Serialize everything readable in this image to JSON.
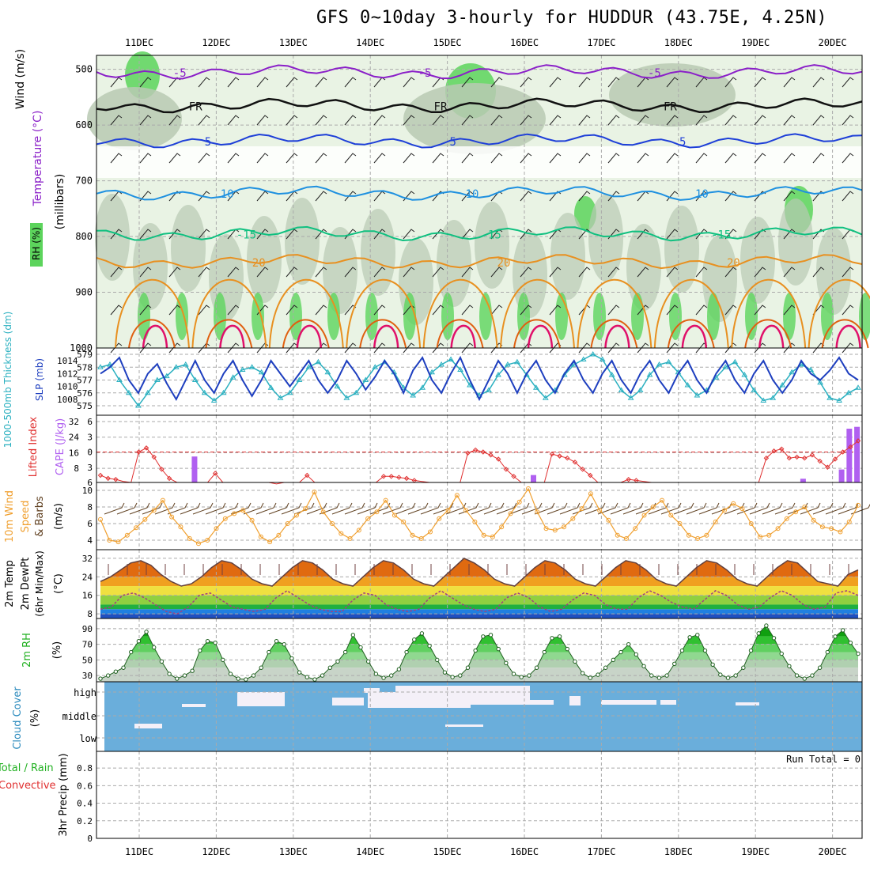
{
  "title": "GFS 0~10day 3-hourly for HUDDUR (43.75E, 4.25N)",
  "dates": [
    "11DEC",
    "12DEC",
    "13DEC",
    "14DEC",
    "15DEC",
    "16DEC",
    "17DEC",
    "18DEC",
    "19DEC",
    "20DEC"
  ],
  "run_total": "Run Total = 0",
  "colors": {
    "grid": "#aaaaaa",
    "slp": "#1e3fbf",
    "thick": "#2ab0c0",
    "li": "#e03030",
    "cape": "#b060f0",
    "wind": "#f0a030",
    "barb": "#604020",
    "rh": "#20b020",
    "cloud": "#6aaedb",
    "precip_green": "#20b020",
    "precip_red": "#e03030"
  },
  "chart_data": [
    {
      "type": "contour",
      "title": "Upper-air cross section",
      "ylabel": "(millibars)",
      "yticks": [
        "500",
        "600",
        "700",
        "800",
        "900",
        "1000"
      ],
      "side_labels": [
        "RH (%)",
        "Temperature (°C)",
        "Wind (m/s)"
      ],
      "isotherms": [
        {
          "label": "-5",
          "color": "#8a1fc8",
          "p": 505
        },
        {
          "label": "FR",
          "color": "#111111",
          "p": 565
        },
        {
          "label": "5",
          "color": "#1e3fd8",
          "p": 628
        },
        {
          "label": "10",
          "color": "#1e90e0",
          "p": 722
        },
        {
          "label": "-15",
          "color": "#10c080",
          "p": 795
        },
        {
          "label": "20",
          "color": "#e89020",
          "p": 845
        }
      ],
      "rh_labels": [
        "30",
        "50",
        "70"
      ]
    },
    {
      "type": "line",
      "title": "Thickness & SLP",
      "left_label": "1000-500mb Thickness (dm)",
      "right_label": "SLP (mb)",
      "left_ticks": [
        "579",
        "578",
        "577",
        "576",
        "575"
      ],
      "right_ticks": [
        "1014",
        "1012",
        "1010",
        "1008"
      ],
      "slp": [
        1012,
        1013,
        1014.5,
        1011,
        1009,
        1012,
        1013.5,
        1010.5,
        1008,
        1011,
        1014,
        1011,
        1009,
        1012,
        1014,
        1011,
        1008.5,
        1011,
        1014,
        1012,
        1010,
        1012,
        1014,
        1011,
        1009,
        1011,
        1014,
        1012,
        1009.5,
        1011.5,
        1014,
        1012,
        1009,
        1012.5,
        1014.5,
        1011,
        1009,
        1012,
        1014.5,
        1011,
        1008,
        1011,
        1014,
        1012,
        1009,
        1012,
        1014,
        1011,
        1009,
        1012,
        1014,
        1011,
        1009,
        1012,
        1014,
        1011,
        1009,
        1012,
        1014,
        1011,
        1009,
        1012,
        1014,
        1011,
        1009,
        1012,
        1014,
        1011,
        1009,
        1012,
        1014,
        1011,
        1009,
        1011,
        1014,
        1012,
        1011,
        1012.5,
        1014.5,
        1012,
        1011
      ],
      "thick": [
        578,
        578.2,
        577,
        576,
        575,
        576,
        577,
        577.3,
        578,
        578.2,
        577,
        576,
        575.4,
        576,
        577.2,
        577.8,
        578,
        577.6,
        576.4,
        575.6,
        576,
        577,
        578,
        578.4,
        577.6,
        576.5,
        575.6,
        576,
        577,
        578,
        578.4,
        577.6,
        576.4,
        575.8,
        576.4,
        577.6,
        578.2,
        578.6,
        577.8,
        576.6,
        575.8,
        576.2,
        577.4,
        578.2,
        578.4,
        577.4,
        576.4,
        575.6,
        576.2,
        577.4,
        578.2,
        578.6,
        579,
        578.6,
        577.4,
        576.2,
        575.6,
        576.2,
        577.4,
        578.2,
        578.4,
        577.6,
        576.6,
        575.8,
        576.2,
        577.2,
        578,
        578.4,
        577.4,
        576.2,
        575.4,
        575.6,
        576.6,
        577.6,
        578.2,
        577.8,
        576.8,
        575.6,
        575.4,
        576,
        576.4
      ]
    },
    {
      "type": "line",
      "title": "CAPE & Lifted Index",
      "left_label": "Lifted Index",
      "right_label": "CAPE (J/kg)",
      "li_ticks": [
        "-6",
        "-3",
        "0",
        "3",
        "6"
      ],
      "cape_ticks": [
        "32",
        "24",
        "16",
        "8"
      ],
      "li": [
        4.6,
        5.2,
        5.4,
        5.8,
        6,
        0,
        -0.8,
        1,
        3.4,
        5.2,
        6,
        6,
        6,
        6,
        6,
        4.2,
        6,
        6,
        6,
        6,
        6,
        6,
        6,
        6.3,
        6,
        6,
        6,
        4.6,
        6,
        6,
        6,
        6,
        6,
        6,
        6,
        6,
        6,
        4.8,
        4.8,
        5,
        5.2,
        5.6,
        5.8,
        6,
        6,
        6,
        6,
        6,
        0.2,
        -0.4,
        0,
        0.6,
        1.4,
        3.4,
        4.8,
        6,
        6,
        6,
        6,
        0.4,
        0.8,
        1.2,
        2,
        3.4,
        4.6,
        6,
        6,
        6,
        6,
        5.4,
        5.6,
        5.8,
        6,
        6,
        6,
        6,
        6,
        6,
        6,
        6,
        6,
        6,
        6,
        6,
        6,
        6,
        6,
        1.2,
        -0.2,
        -0.6,
        1.2,
        1,
        1.2,
        0.6,
        1.8,
        3,
        1.4,
        0,
        -1,
        -2.2
      ],
      "cape_bars": [
        {
          "day": 0.6,
          "v": 14
        },
        {
          "day": 5.0,
          "v": 4
        },
        {
          "day": 8.5,
          "v": 2
        },
        {
          "day": 9.0,
          "v": 7
        },
        {
          "day": 9.1,
          "v": 29
        },
        {
          "day": 9.2,
          "v": 30
        }
      ]
    },
    {
      "type": "line",
      "title": "10m Wind",
      "ylabel": "10m Wind Speed & Barbs (m/s)",
      "yticks": [
        "10",
        "8",
        "6",
        "4"
      ],
      "speed": [
        6.5,
        4,
        3.8,
        4.6,
        5.5,
        6.5,
        7.6,
        8.8,
        6.8,
        5.6,
        4.2,
        3.6,
        4,
        5.4,
        6.6,
        7.2,
        7.6,
        6.4,
        4.4,
        3.8,
        4.6,
        6,
        7,
        7.8,
        9.8,
        7.4,
        6,
        4.8,
        4.2,
        5.2,
        6.6,
        7.4,
        8.8,
        7,
        6.2,
        4.6,
        4.2,
        5,
        6.6,
        7.6,
        9.4,
        7.6,
        6.2,
        4.6,
        4.4,
        5.6,
        7.2,
        8.6,
        10.2,
        7.4,
        5.4,
        5.2,
        5.6,
        6.6,
        7.8,
        9.6,
        7.6,
        6.4,
        4.6,
        4.2,
        5.4,
        7,
        8,
        8.8,
        7,
        6,
        4.6,
        4.2,
        4.6,
        6.2,
        7.6,
        8.4,
        7.8,
        6,
        4.4,
        4.6,
        5.4,
        6.6,
        7.4,
        8,
        6.4,
        5.6,
        5.4,
        5,
        6.2,
        8.2
      ]
    },
    {
      "type": "area",
      "title": "2m Temp & DewPt",
      "ylabel": "2m Temp 2m DewPt (6hr Min/Max) (°C)",
      "yticks": [
        "32",
        "24",
        "16",
        "8"
      ],
      "temp": [
        22,
        24,
        27,
        30,
        31,
        29,
        25,
        22,
        20,
        21,
        24,
        28,
        31,
        30,
        27,
        23,
        21,
        20,
        24,
        28,
        31,
        30,
        27,
        23,
        21,
        20,
        24,
        28,
        31,
        30,
        27,
        23,
        21,
        20,
        24,
        28,
        32,
        30,
        27,
        23,
        21,
        20,
        24,
        28,
        31,
        30,
        27,
        23,
        21,
        20,
        24,
        28,
        31,
        30,
        27,
        23,
        21,
        20,
        24,
        28,
        31,
        30,
        27,
        23,
        21,
        20,
        24,
        28,
        31,
        30,
        26,
        22,
        21,
        20,
        25,
        27
      ],
      "dew": [
        10,
        11,
        16,
        17,
        15,
        12,
        9,
        8,
        11,
        16,
        17,
        14,
        11,
        10,
        9,
        10,
        15,
        18,
        15,
        12,
        10,
        9,
        9,
        14,
        17,
        16,
        12,
        10,
        9,
        10,
        15,
        18,
        15,
        12,
        10,
        9,
        10,
        15,
        17,
        15,
        11,
        9,
        10,
        14,
        17,
        16,
        12,
        10,
        10,
        15,
        18,
        16,
        13,
        11,
        10,
        14,
        18,
        16,
        12,
        10,
        11,
        15,
        18,
        16,
        12,
        10,
        11,
        17,
        18,
        16
      ]
    },
    {
      "type": "area",
      "title": "2m RH",
      "ylabel": "2m RH (%)",
      "yticks": [
        "90",
        "70",
        "50",
        "30"
      ],
      "rh": [
        26,
        30,
        35,
        40,
        60,
        74,
        86,
        66,
        48,
        32,
        26,
        30,
        36,
        62,
        74,
        72,
        50,
        32,
        26,
        25,
        30,
        40,
        60,
        74,
        70,
        52,
        34,
        28,
        25,
        30,
        40,
        48,
        60,
        82,
        66,
        48,
        32,
        27,
        30,
        38,
        60,
        76,
        84,
        68,
        50,
        34,
        28,
        30,
        40,
        62,
        80,
        82,
        64,
        46,
        32,
        28,
        30,
        40,
        60,
        78,
        80,
        64,
        48,
        33,
        27,
        31,
        40,
        50,
        60,
        70,
        57,
        42,
        30,
        27,
        30,
        45,
        62,
        79,
        82,
        62,
        44,
        31,
        27,
        30,
        40,
        62,
        84,
        94,
        78,
        58,
        42,
        30,
        26,
        30,
        40,
        60,
        80,
        88,
        72,
        58
      ]
    },
    {
      "type": "heatmap",
      "title": "Cloud Cover",
      "ylabel": "Cloud Cover (%)",
      "levels": [
        "high",
        "middle",
        "low"
      ]
    },
    {
      "type": "bar",
      "title": "3hr Precip",
      "ylabel": "3hr Precip (mm)",
      "side_labels": [
        "Total / Rain",
        "Convective"
      ],
      "yticks": [
        "0.8",
        "0.6",
        "0.4",
        "0.2",
        "0"
      ],
      "values": []
    }
  ]
}
